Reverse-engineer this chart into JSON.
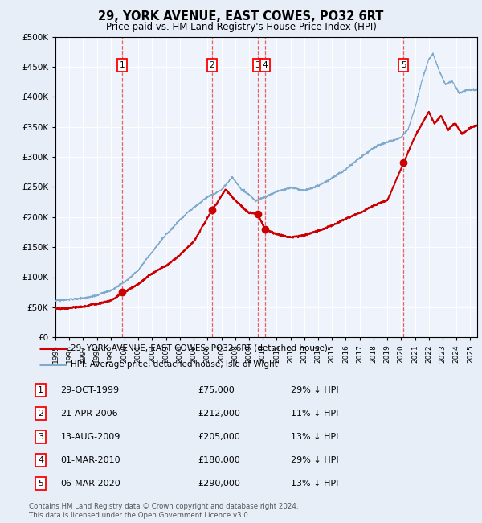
{
  "title": "29, YORK AVENUE, EAST COWES, PO32 6RT",
  "subtitle": "Price paid vs. HM Land Registry's House Price Index (HPI)",
  "legend_line1": "29, YORK AVENUE, EAST COWES, PO32 6RT (detached house)",
  "legend_line2": "HPI: Average price, detached house, Isle of Wight",
  "footer1": "Contains HM Land Registry data © Crown copyright and database right 2024.",
  "footer2": "This data is licensed under the Open Government Licence v3.0.",
  "purchases": [
    {
      "num": 1,
      "date": "29-OCT-1999",
      "price": 75000,
      "hpi_pct": "29% ↓ HPI",
      "year": 1999.83
    },
    {
      "num": 2,
      "date": "21-APR-2006",
      "price": 212000,
      "hpi_pct": "11% ↓ HPI",
      "year": 2006.31
    },
    {
      "num": 3,
      "date": "13-AUG-2009",
      "price": 205000,
      "hpi_pct": "13% ↓ HPI",
      "year": 2009.62
    },
    {
      "num": 4,
      "date": "01-MAR-2010",
      "price": 180000,
      "hpi_pct": "29% ↓ HPI",
      "year": 2010.17
    },
    {
      "num": 5,
      "date": "06-MAR-2020",
      "price": 290000,
      "hpi_pct": "13% ↓ HPI",
      "year": 2020.17
    }
  ],
  "bg_color": "#e8eef8",
  "plot_bg": "#eef3fc",
  "red_line_color": "#cc0000",
  "blue_line_color": "#7faacc",
  "dashed_color": "#ee4444",
  "grid_color": "#ffffff",
  "ylim": [
    0,
    500000
  ],
  "yticks": [
    0,
    50000,
    100000,
    150000,
    200000,
    250000,
    300000,
    350000,
    400000,
    450000,
    500000
  ],
  "xmin": 1995.0,
  "xmax": 2025.5
}
